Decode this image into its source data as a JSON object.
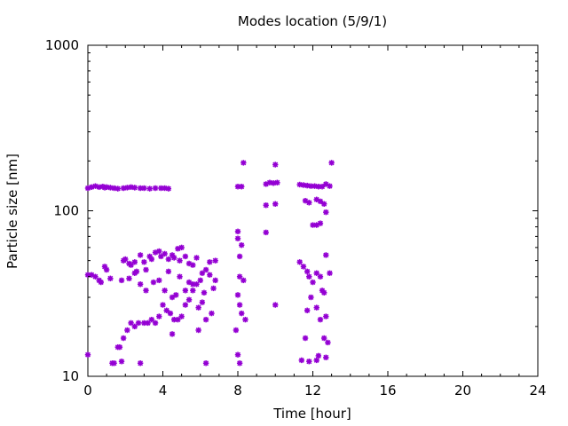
{
  "chart_data": {
    "type": "scatter",
    "title": "Modes location (5/9/1)",
    "xlabel": "Time [hour]",
    "ylabel": "Particle size [nm]",
    "xlim": [
      0,
      24
    ],
    "ylim": [
      10,
      1000
    ],
    "yscale": "log",
    "grid": false,
    "legend": "none",
    "x_ticks": [
      0,
      4,
      8,
      12,
      16,
      20,
      24
    ],
    "x_tick_labels": [
      "0",
      "4",
      "8",
      "12",
      "16",
      "20",
      "24"
    ],
    "y_ticks": [
      10,
      100,
      1000
    ],
    "y_tick_labels": [
      "10",
      "100",
      "1000"
    ],
    "marker": "asterisk",
    "color": "#9400d3",
    "series": [
      {
        "points": [
          [
            0.0,
            137
          ],
          [
            0.2,
            139
          ],
          [
            0.4,
            141
          ],
          [
            0.6,
            139
          ],
          [
            0.8,
            140
          ],
          [
            0.9,
            138
          ],
          [
            1.0,
            139
          ],
          [
            1.2,
            138
          ],
          [
            1.4,
            137
          ],
          [
            1.6,
            136
          ],
          [
            1.9,
            137
          ],
          [
            2.1,
            138
          ],
          [
            2.3,
            139
          ],
          [
            2.5,
            138
          ],
          [
            2.8,
            137
          ],
          [
            3.0,
            137
          ],
          [
            3.3,
            136
          ],
          [
            3.6,
            137
          ],
          [
            3.9,
            137
          ],
          [
            4.1,
            137
          ],
          [
            4.3,
            136
          ],
          [
            0.0,
            41
          ],
          [
            0.2,
            41
          ],
          [
            0.4,
            40
          ],
          [
            0.6,
            38
          ],
          [
            0.7,
            37
          ],
          [
            0.9,
            46
          ],
          [
            1.0,
            44
          ],
          [
            1.2,
            39
          ],
          [
            1.9,
            50
          ],
          [
            2.0,
            51
          ],
          [
            2.2,
            48
          ],
          [
            2.3,
            47
          ],
          [
            2.5,
            49
          ],
          [
            2.6,
            43
          ],
          [
            2.8,
            54
          ],
          [
            3.0,
            49
          ],
          [
            3.1,
            44
          ],
          [
            3.3,
            53
          ],
          [
            3.4,
            51
          ],
          [
            3.6,
            56
          ],
          [
            3.8,
            57
          ],
          [
            3.9,
            53
          ],
          [
            4.1,
            55
          ],
          [
            4.3,
            51
          ],
          [
            4.5,
            54
          ],
          [
            4.6,
            52
          ],
          [
            4.8,
            59
          ],
          [
            4.9,
            50
          ],
          [
            5.0,
            60
          ],
          [
            5.2,
            53
          ],
          [
            5.4,
            48
          ],
          [
            5.6,
            47
          ],
          [
            5.8,
            52
          ],
          [
            6.1,
            42
          ],
          [
            6.3,
            44
          ],
          [
            6.5,
            49
          ],
          [
            6.8,
            50
          ],
          [
            1.8,
            38
          ],
          [
            2.2,
            39
          ],
          [
            2.5,
            42
          ],
          [
            2.8,
            36
          ],
          [
            3.1,
            33
          ],
          [
            3.5,
            37
          ],
          [
            3.8,
            38
          ],
          [
            4.1,
            33
          ],
          [
            4.3,
            43
          ],
          [
            4.5,
            30
          ],
          [
            4.7,
            31
          ],
          [
            4.9,
            40
          ],
          [
            5.2,
            33
          ],
          [
            5.4,
            37
          ],
          [
            5.6,
            36
          ],
          [
            5.8,
            36
          ],
          [
            6.0,
            38
          ],
          [
            6.2,
            32
          ],
          [
            6.5,
            41
          ],
          [
            6.7,
            34
          ],
          [
            6.8,
            38
          ],
          [
            1.4,
            12
          ],
          [
            1.6,
            15
          ],
          [
            1.7,
            15
          ],
          [
            1.9,
            17
          ],
          [
            2.1,
            19
          ],
          [
            2.3,
            21
          ],
          [
            2.5,
            20
          ],
          [
            2.7,
            21
          ],
          [
            3.0,
            21
          ],
          [
            3.2,
            21
          ],
          [
            3.4,
            22
          ],
          [
            3.6,
            21
          ],
          [
            3.8,
            23
          ],
          [
            4.0,
            27
          ],
          [
            4.2,
            25
          ],
          [
            4.4,
            24
          ],
          [
            4.6,
            22
          ],
          [
            4.8,
            22
          ],
          [
            5.0,
            23
          ],
          [
            5.2,
            27
          ],
          [
            5.4,
            29
          ],
          [
            5.6,
            33
          ],
          [
            5.9,
            26
          ],
          [
            6.1,
            28
          ],
          [
            6.3,
            22
          ],
          [
            6.6,
            24
          ],
          [
            0.0,
            13.5
          ],
          [
            1.3,
            12
          ],
          [
            1.8,
            12.3
          ],
          [
            2.8,
            12
          ],
          [
            4.5,
            18
          ],
          [
            5.9,
            19
          ],
          [
            6.3,
            12
          ],
          [
            8.0,
            140
          ],
          [
            8.2,
            140
          ],
          [
            8.3,
            195
          ],
          [
            8.0,
            75
          ],
          [
            8.0,
            68
          ],
          [
            8.1,
            40
          ],
          [
            8.1,
            53
          ],
          [
            8.2,
            62
          ],
          [
            8.3,
            38
          ],
          [
            8.0,
            31
          ],
          [
            8.2,
            24
          ],
          [
            8.4,
            22
          ],
          [
            8.1,
            27
          ],
          [
            7.9,
            19
          ],
          [
            8.0,
            13.5
          ],
          [
            8.1,
            12
          ],
          [
            9.5,
            145
          ],
          [
            9.7,
            148
          ],
          [
            9.9,
            147
          ],
          [
            10.1,
            148
          ],
          [
            10.0,
            190
          ],
          [
            9.5,
            108
          ],
          [
            10.0,
            110
          ],
          [
            9.5,
            74
          ],
          [
            10.0,
            27
          ],
          [
            11.3,
            144
          ],
          [
            11.5,
            143
          ],
          [
            11.7,
            142
          ],
          [
            11.9,
            141
          ],
          [
            12.1,
            141
          ],
          [
            12.3,
            140
          ],
          [
            12.5,
            140
          ],
          [
            12.7,
            145
          ],
          [
            12.9,
            141
          ],
          [
            13.0,
            195
          ],
          [
            11.6,
            115
          ],
          [
            11.8,
            112
          ],
          [
            12.2,
            117
          ],
          [
            12.4,
            114
          ],
          [
            12.6,
            110
          ],
          [
            12.7,
            98
          ],
          [
            12.0,
            82
          ],
          [
            12.2,
            82
          ],
          [
            12.4,
            84
          ],
          [
            11.3,
            49
          ],
          [
            11.5,
            46
          ],
          [
            11.7,
            43
          ],
          [
            11.8,
            40
          ],
          [
            12.0,
            37
          ],
          [
            12.2,
            42
          ],
          [
            12.4,
            40
          ],
          [
            12.7,
            54
          ],
          [
            12.9,
            42
          ],
          [
            12.5,
            33
          ],
          [
            11.9,
            30
          ],
          [
            11.7,
            25
          ],
          [
            12.2,
            26
          ],
          [
            12.4,
            22
          ],
          [
            12.7,
            23
          ],
          [
            11.6,
            17
          ],
          [
            12.6,
            17
          ],
          [
            12.8,
            16
          ],
          [
            11.4,
            12.5
          ],
          [
            11.8,
            12.3
          ],
          [
            12.2,
            12.5
          ],
          [
            12.3,
            13.3
          ],
          [
            12.7,
            13
          ],
          [
            12.6,
            32
          ]
        ]
      }
    ]
  }
}
